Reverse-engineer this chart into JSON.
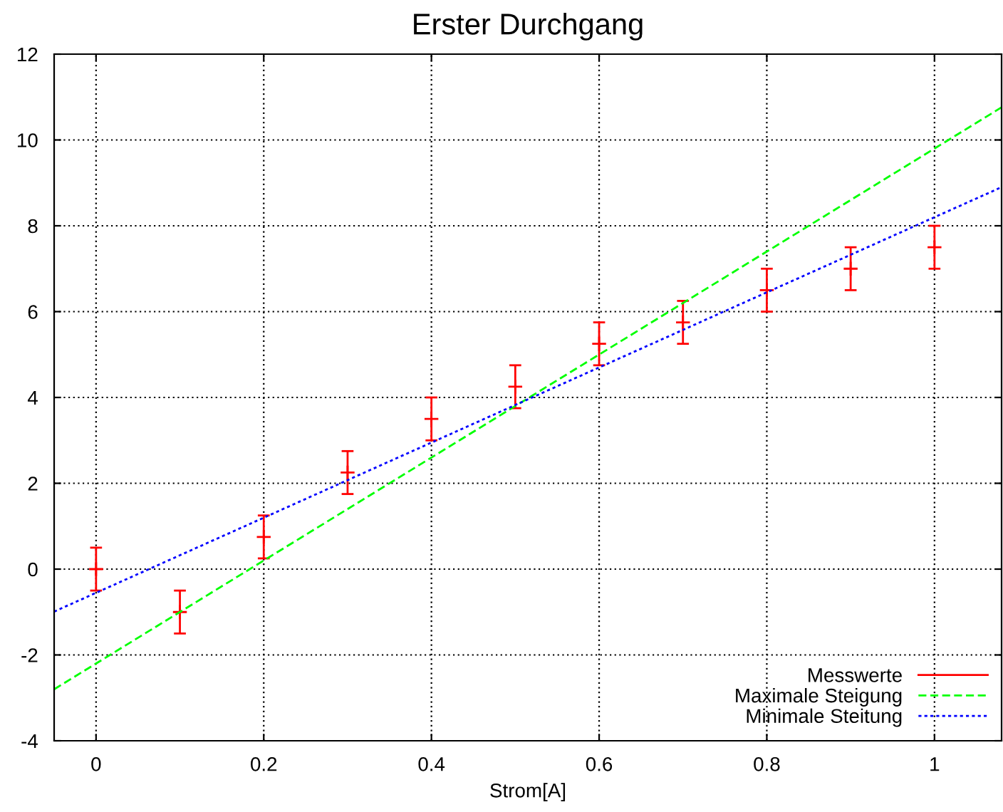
{
  "chart_data": {
    "type": "scatter",
    "title": "Erster Durchgang",
    "xlabel": "Strom[A]",
    "xlim": [
      -0.05,
      1.08
    ],
    "ylim": [
      -4,
      12
    ],
    "xticks": [
      0,
      0.2,
      0.4,
      0.6,
      0.8,
      1
    ],
    "yticks": [
      -4,
      -2,
      0,
      2,
      4,
      6,
      8,
      10,
      12
    ],
    "grid": true,
    "legend": "bottom right",
    "series": [
      {
        "name": "Messwerte",
        "marker": "cross",
        "color": "#ff0000",
        "x": [
          0,
          0.1,
          0.2,
          0.3,
          0.4,
          0.5,
          0.6,
          0.7,
          0.8,
          0.9,
          1
        ],
        "values": [
          0,
          -1,
          0.75,
          2.25,
          3.5,
          4.25,
          5.25,
          5.75,
          6.5,
          7,
          7.5
        ],
        "errors": [
          0.5,
          0.5,
          0.5,
          0.5,
          0.5,
          0.5,
          0.5,
          0.5,
          0.5,
          0.5,
          0.5
        ]
      },
      {
        "name": "Maximale Steigung",
        "type": "line",
        "line_style": "dashed",
        "color": "#00ff00",
        "x": [
          -0.05,
          1.08
        ],
        "values": [
          -2.8,
          10.76
        ]
      },
      {
        "name": "Minimale Steitung",
        "type": "line",
        "line_style": "dotted",
        "color": "#0000ff",
        "x": [
          -0.05,
          1.08
        ],
        "values": [
          -0.99,
          8.9
        ]
      }
    ]
  }
}
